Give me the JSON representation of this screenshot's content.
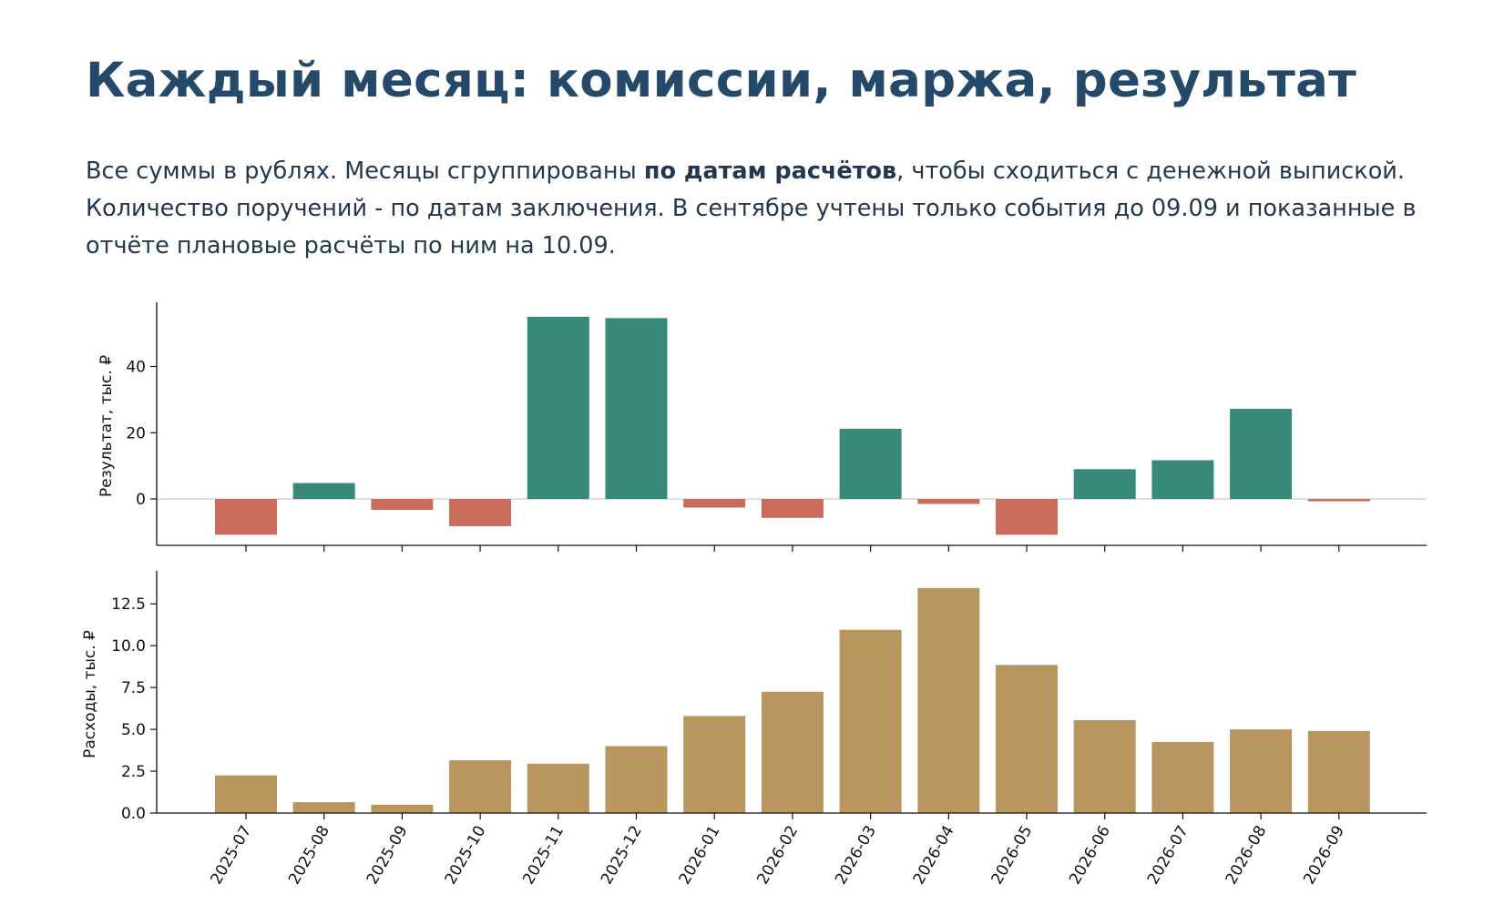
{
  "header": {
    "title": "Каждый месяц: комиссии, маржа, результат",
    "description_before": "Все суммы в рублях. Месяцы сгруппированы ",
    "description_bold": "по датам расчётов",
    "description_after": ", чтобы сходиться с денежной выпиской. Количество поручений - по датам заключения. В сентябре учтены только события до 09.09 и показанные в отчёте плановые расчёты по ним на 10.09."
  },
  "chart_data": [
    {
      "type": "bar",
      "ylabel": "Результат, тыс. ₽",
      "ylim": [
        -14,
        58
      ],
      "yticks": [
        0,
        20,
        40
      ],
      "ytick_labels": [
        "0",
        "20",
        "40"
      ],
      "categories": [
        "2025-07",
        "2025-08",
        "2025-09",
        "2025-10",
        "2025-11",
        "2025-12",
        "2026-01",
        "2026-02",
        "2026-03",
        "2026-04",
        "2026-05",
        "2026-06",
        "2026-07",
        "2026-08",
        "2026-09"
      ],
      "values": [
        -10.8,
        4.8,
        -3.3,
        -8.2,
        55.0,
        54.6,
        -2.6,
        -5.7,
        21.2,
        -1.5,
        -10.8,
        9.0,
        11.7,
        27.2,
        -0.7
      ],
      "colors": {
        "positive": "#37897a",
        "negative": "#c96b5d",
        "zero_line": "#c8c8c8"
      }
    },
    {
      "type": "bar",
      "ylabel": "Расходы, тыс. ₽",
      "ylim": [
        0,
        14.2
      ],
      "yticks": [
        0,
        2.5,
        5,
        7.5,
        10,
        12.5
      ],
      "ytick_labels": [
        "0.0",
        "2.5",
        "5.0",
        "7.5",
        "10.0",
        "12.5"
      ],
      "xlabel": "",
      "categories": [
        "2025-07",
        "2025-08",
        "2025-09",
        "2025-10",
        "2025-11",
        "2025-12",
        "2026-01",
        "2026-02",
        "2026-03",
        "2026-04",
        "2026-05",
        "2026-06",
        "2026-07",
        "2026-08",
        "2026-09"
      ],
      "values": [
        2.25,
        0.65,
        0.5,
        3.15,
        2.95,
        4.0,
        5.8,
        7.25,
        10.95,
        13.45,
        8.85,
        5.55,
        4.25,
        5.0,
        4.9
      ],
      "colors": {
        "bar": "#b99660"
      }
    }
  ]
}
